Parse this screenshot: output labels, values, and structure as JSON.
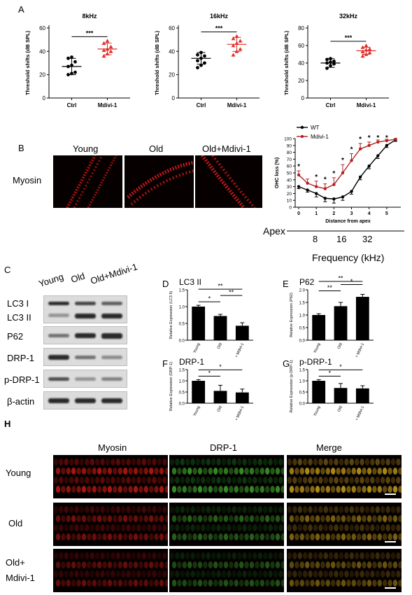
{
  "panels": {
    "A": "A",
    "B": "B",
    "C": "C",
    "D": "D",
    "E": "E",
    "F": "F",
    "G": "G",
    "H": "H"
  },
  "panel_a": {
    "ylabel": "Threshold shifts (dB SPL)",
    "groups": [
      "Ctrl",
      "Mdivi-1"
    ],
    "sig": "***",
    "ctrl_color": "#000000",
    "mdivi_color": "#e0302a"
  },
  "panel_b": {
    "columns": [
      "Young",
      "Old",
      "Old+Mdivi-1"
    ],
    "row_label": "Myosin",
    "apex_label": "Apex",
    "freq_ticks": [
      "8",
      "16",
      "32"
    ],
    "freq_label": "Frequency (kHz)"
  },
  "panel_c": {
    "columns": [
      "Young",
      "Old",
      "Old+Mdivi-1"
    ],
    "rows": [
      "LC3 I",
      "LC3 II",
      "P62",
      "DRP-1",
      "p-DRP-1",
      "β-actin"
    ]
  },
  "panel_h": {
    "columns": [
      "Myosin",
      "DRP-1",
      "Merge"
    ],
    "rows": [
      "Young",
      "Old",
      "Old+",
      "Mdivi-1"
    ]
  },
  "chart_data": [
    {
      "id": "A1",
      "type": "scatter",
      "title": "8kHz",
      "ylabel": "Threshold shifts (dB SPL)",
      "ylim": [
        0,
        60
      ],
      "yticks": [
        0,
        20,
        40,
        60
      ],
      "categories": [
        "Ctrl",
        "Mdivi-1"
      ],
      "series": [
        {
          "name": "Ctrl",
          "values": [
            20,
            21,
            22,
            27,
            28,
            31,
            34,
            35
          ],
          "mean": 27,
          "sd": 7
        },
        {
          "name": "Mdivi-1",
          "values": [
            36,
            38,
            40,
            41,
            42,
            44,
            47,
            49
          ],
          "mean": 42,
          "sd": 5
        }
      ],
      "significance": "***"
    },
    {
      "id": "A2",
      "type": "scatter",
      "title": "16kHz",
      "ylabel": "Threshold shifts (dB SPL)",
      "ylim": [
        0,
        60
      ],
      "yticks": [
        0,
        20,
        40,
        60
      ],
      "categories": [
        "Ctrl",
        "Mdivi-1"
      ],
      "series": [
        {
          "name": "Ctrl",
          "values": [
            26,
            28,
            30,
            32,
            34,
            36,
            37,
            39
          ],
          "mean": 34,
          "sd": 5
        },
        {
          "name": "Mdivi-1",
          "values": [
            37,
            40,
            42,
            45,
            47,
            49,
            51,
            53
          ],
          "mean": 46,
          "sd": 6
        }
      ],
      "significance": "***"
    },
    {
      "id": "A3",
      "type": "scatter",
      "title": "32kHz",
      "ylabel": "Threshold shifts (dB SPL)",
      "ylim": [
        0,
        80
      ],
      "yticks": [
        0,
        20,
        40,
        60,
        80
      ],
      "categories": [
        "Ctrl",
        "Mdivi-1"
      ],
      "series": [
        {
          "name": "Ctrl",
          "values": [
            34,
            37,
            39,
            40,
            41,
            42,
            44,
            45
          ],
          "mean": 40,
          "sd": 5
        },
        {
          "name": "Mdivi-1",
          "values": [
            48,
            50,
            52,
            53,
            55,
            56,
            58,
            60
          ],
          "mean": 54,
          "sd": 4
        }
      ],
      "significance": "***"
    },
    {
      "id": "B",
      "type": "line",
      "xlabel": "Distance from apex",
      "ylabel": "OHC loss (%)",
      "xlim": [
        -0.2,
        5.8
      ],
      "ylim": [
        0,
        100
      ],
      "xticks": [
        0,
        1,
        2,
        3,
        4,
        5
      ],
      "yticks": [
        0,
        10,
        20,
        30,
        40,
        50,
        60,
        70,
        80,
        90,
        100
      ],
      "x": [
        0,
        0.5,
        1,
        1.5,
        2,
        2.5,
        3,
        3.5,
        4,
        4.5,
        5,
        5.5
      ],
      "series": [
        {
          "name": "WT",
          "color": "#000000",
          "values": [
            30,
            25,
            20,
            13,
            12,
            15,
            23,
            44,
            60,
            75,
            90,
            98
          ],
          "err": [
            3,
            3,
            5,
            5,
            6,
            5,
            4,
            4,
            4,
            4,
            3,
            2
          ]
        },
        {
          "name": "Mdivi-1",
          "color": "#b22222",
          "values": [
            47,
            35,
            30,
            27,
            33,
            50,
            68,
            85,
            90,
            95,
            97,
            99
          ],
          "err": [
            6,
            6,
            8,
            7,
            10,
            12,
            10,
            8,
            5,
            3,
            2,
            1
          ]
        }
      ],
      "significance": [
        "*",
        "",
        "*",
        "*",
        "*",
        "*",
        "*",
        "*",
        "*",
        "*",
        "*",
        ""
      ]
    },
    {
      "id": "D",
      "type": "bar",
      "title": "LC3 II",
      "ylabel": "Relative Expression (LC3 II)",
      "ylim": [
        0,
        1.5
      ],
      "yticks": [
        0.0,
        0.5,
        1.0,
        1.5
      ],
      "categories": [
        "Young",
        "Old",
        "Old+ Mdivi-1"
      ],
      "values": [
        1.0,
        0.72,
        0.43
      ],
      "err": [
        0.04,
        0.05,
        0.09
      ],
      "comparisons": [
        {
          "pair": [
            0,
            1
          ],
          "label": "*"
        },
        {
          "pair": [
            0,
            2
          ],
          "label": "**"
        },
        {
          "pair": [
            1,
            2
          ],
          "label": "**"
        }
      ]
    },
    {
      "id": "E",
      "type": "bar",
      "title": "P62",
      "ylabel": "Relative Expression (P62)",
      "ylim": [
        0,
        2.0
      ],
      "yticks": [
        0.0,
        0.5,
        1.0,
        1.5,
        2.0
      ],
      "categories": [
        "Young",
        "Old",
        "Old+ Mdivi-1"
      ],
      "values": [
        1.0,
        1.35,
        1.72
      ],
      "err": [
        0.05,
        0.15,
        0.1
      ],
      "comparisons": [
        {
          "pair": [
            0,
            1
          ],
          "label": "**"
        },
        {
          "pair": [
            0,
            2
          ],
          "label": "**"
        },
        {
          "pair": [
            1,
            2
          ],
          "label": "*"
        }
      ]
    },
    {
      "id": "F",
      "type": "bar",
      "title": "DRP-1",
      "ylabel": "Relative Expression (DRP-1)",
      "ylim": [
        0,
        1.5
      ],
      "yticks": [
        0.0,
        0.5,
        1.0,
        1.5
      ],
      "categories": [
        "Young",
        "Old",
        "Old+ Mdivi-1"
      ],
      "values": [
        1.0,
        0.55,
        0.48
      ],
      "err": [
        0.05,
        0.25,
        0.15
      ],
      "comparisons": [
        {
          "pair": [
            0,
            1
          ],
          "label": "*"
        },
        {
          "pair": [
            0,
            2
          ],
          "label": "*"
        }
      ]
    },
    {
      "id": "G",
      "type": "bar",
      "title": "p-DRP-1",
      "ylabel": "Relative Expression (p-DRP-1)",
      "ylim": [
        0,
        1.5
      ],
      "yticks": [
        0.0,
        0.5,
        1.0,
        1.5
      ],
      "categories": [
        "Young",
        "Old",
        "Old+ Mdivi-1"
      ],
      "values": [
        1.0,
        0.68,
        0.66
      ],
      "err": [
        0.05,
        0.2,
        0.12
      ],
      "comparisons": [
        {
          "pair": [
            0,
            1
          ],
          "label": "*"
        },
        {
          "pair": [
            0,
            2
          ],
          "label": "*"
        }
      ]
    }
  ]
}
